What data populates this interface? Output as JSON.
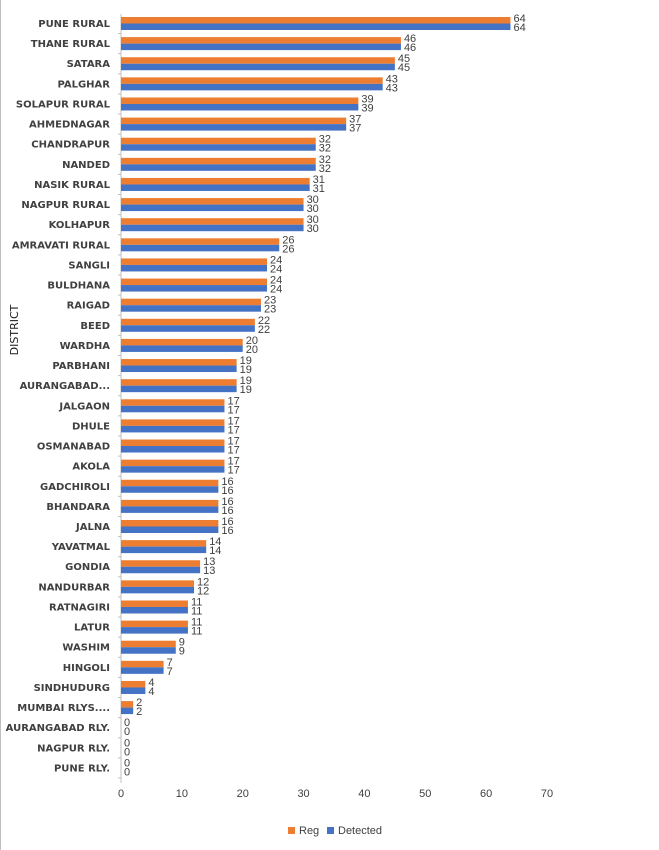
{
  "chart_data": {
    "type": "bar",
    "orientation": "horizontal",
    "ylabel": "DISTRICT",
    "xlabel": "",
    "xlim": [
      0,
      70
    ],
    "xticks": [
      0,
      10,
      20,
      30,
      40,
      50,
      60,
      70
    ],
    "grid": false,
    "legend_position": "bottom",
    "categories": [
      "PUNE RURAL",
      "THANE RURAL",
      "SATARA",
      "PALGHAR",
      "SOLAPUR RURAL",
      "AHMEDNAGAR",
      "CHANDRAPUR",
      "NANDED",
      "NASIK RURAL",
      "NAGPUR RURAL",
      "KOLHAPUR",
      "AMRAVATI RURAL",
      "SANGLI",
      "BULDHANA",
      "RAIGAD",
      "BEED",
      "WARDHA",
      "PARBHANI",
      "AURANGABAD...",
      "JALGAON",
      "DHULE",
      "OSMANABAD",
      "AKOLA",
      "GADCHIROLI",
      "BHANDARA",
      "JALNA",
      "YAVATMAL",
      "GONDIA",
      "NANDURBAR",
      "RATNAGIRI",
      "LATUR",
      "WASHIM",
      "HINGOLI",
      "SINDHUDURG",
      "MUMBAI RLYS....",
      "AURANGABAD RLY.",
      "NAGPUR RLY.",
      "PUNE RLY."
    ],
    "series": [
      {
        "name": "Reg",
        "color": "#ED7D31",
        "values": [
          64,
          46,
          45,
          43,
          39,
          37,
          32,
          32,
          31,
          30,
          30,
          26,
          24,
          24,
          23,
          22,
          20,
          19,
          19,
          17,
          17,
          17,
          17,
          16,
          16,
          16,
          14,
          13,
          12,
          11,
          11,
          9,
          7,
          4,
          2,
          0,
          0,
          0
        ]
      },
      {
        "name": "Detected",
        "color": "#4472C4",
        "values": [
          64,
          46,
          45,
          43,
          39,
          37,
          32,
          32,
          31,
          30,
          30,
          26,
          24,
          24,
          23,
          22,
          20,
          19,
          19,
          17,
          17,
          17,
          17,
          16,
          16,
          16,
          14,
          13,
          12,
          11,
          11,
          9,
          7,
          4,
          2,
          0,
          0,
          0
        ]
      }
    ]
  }
}
